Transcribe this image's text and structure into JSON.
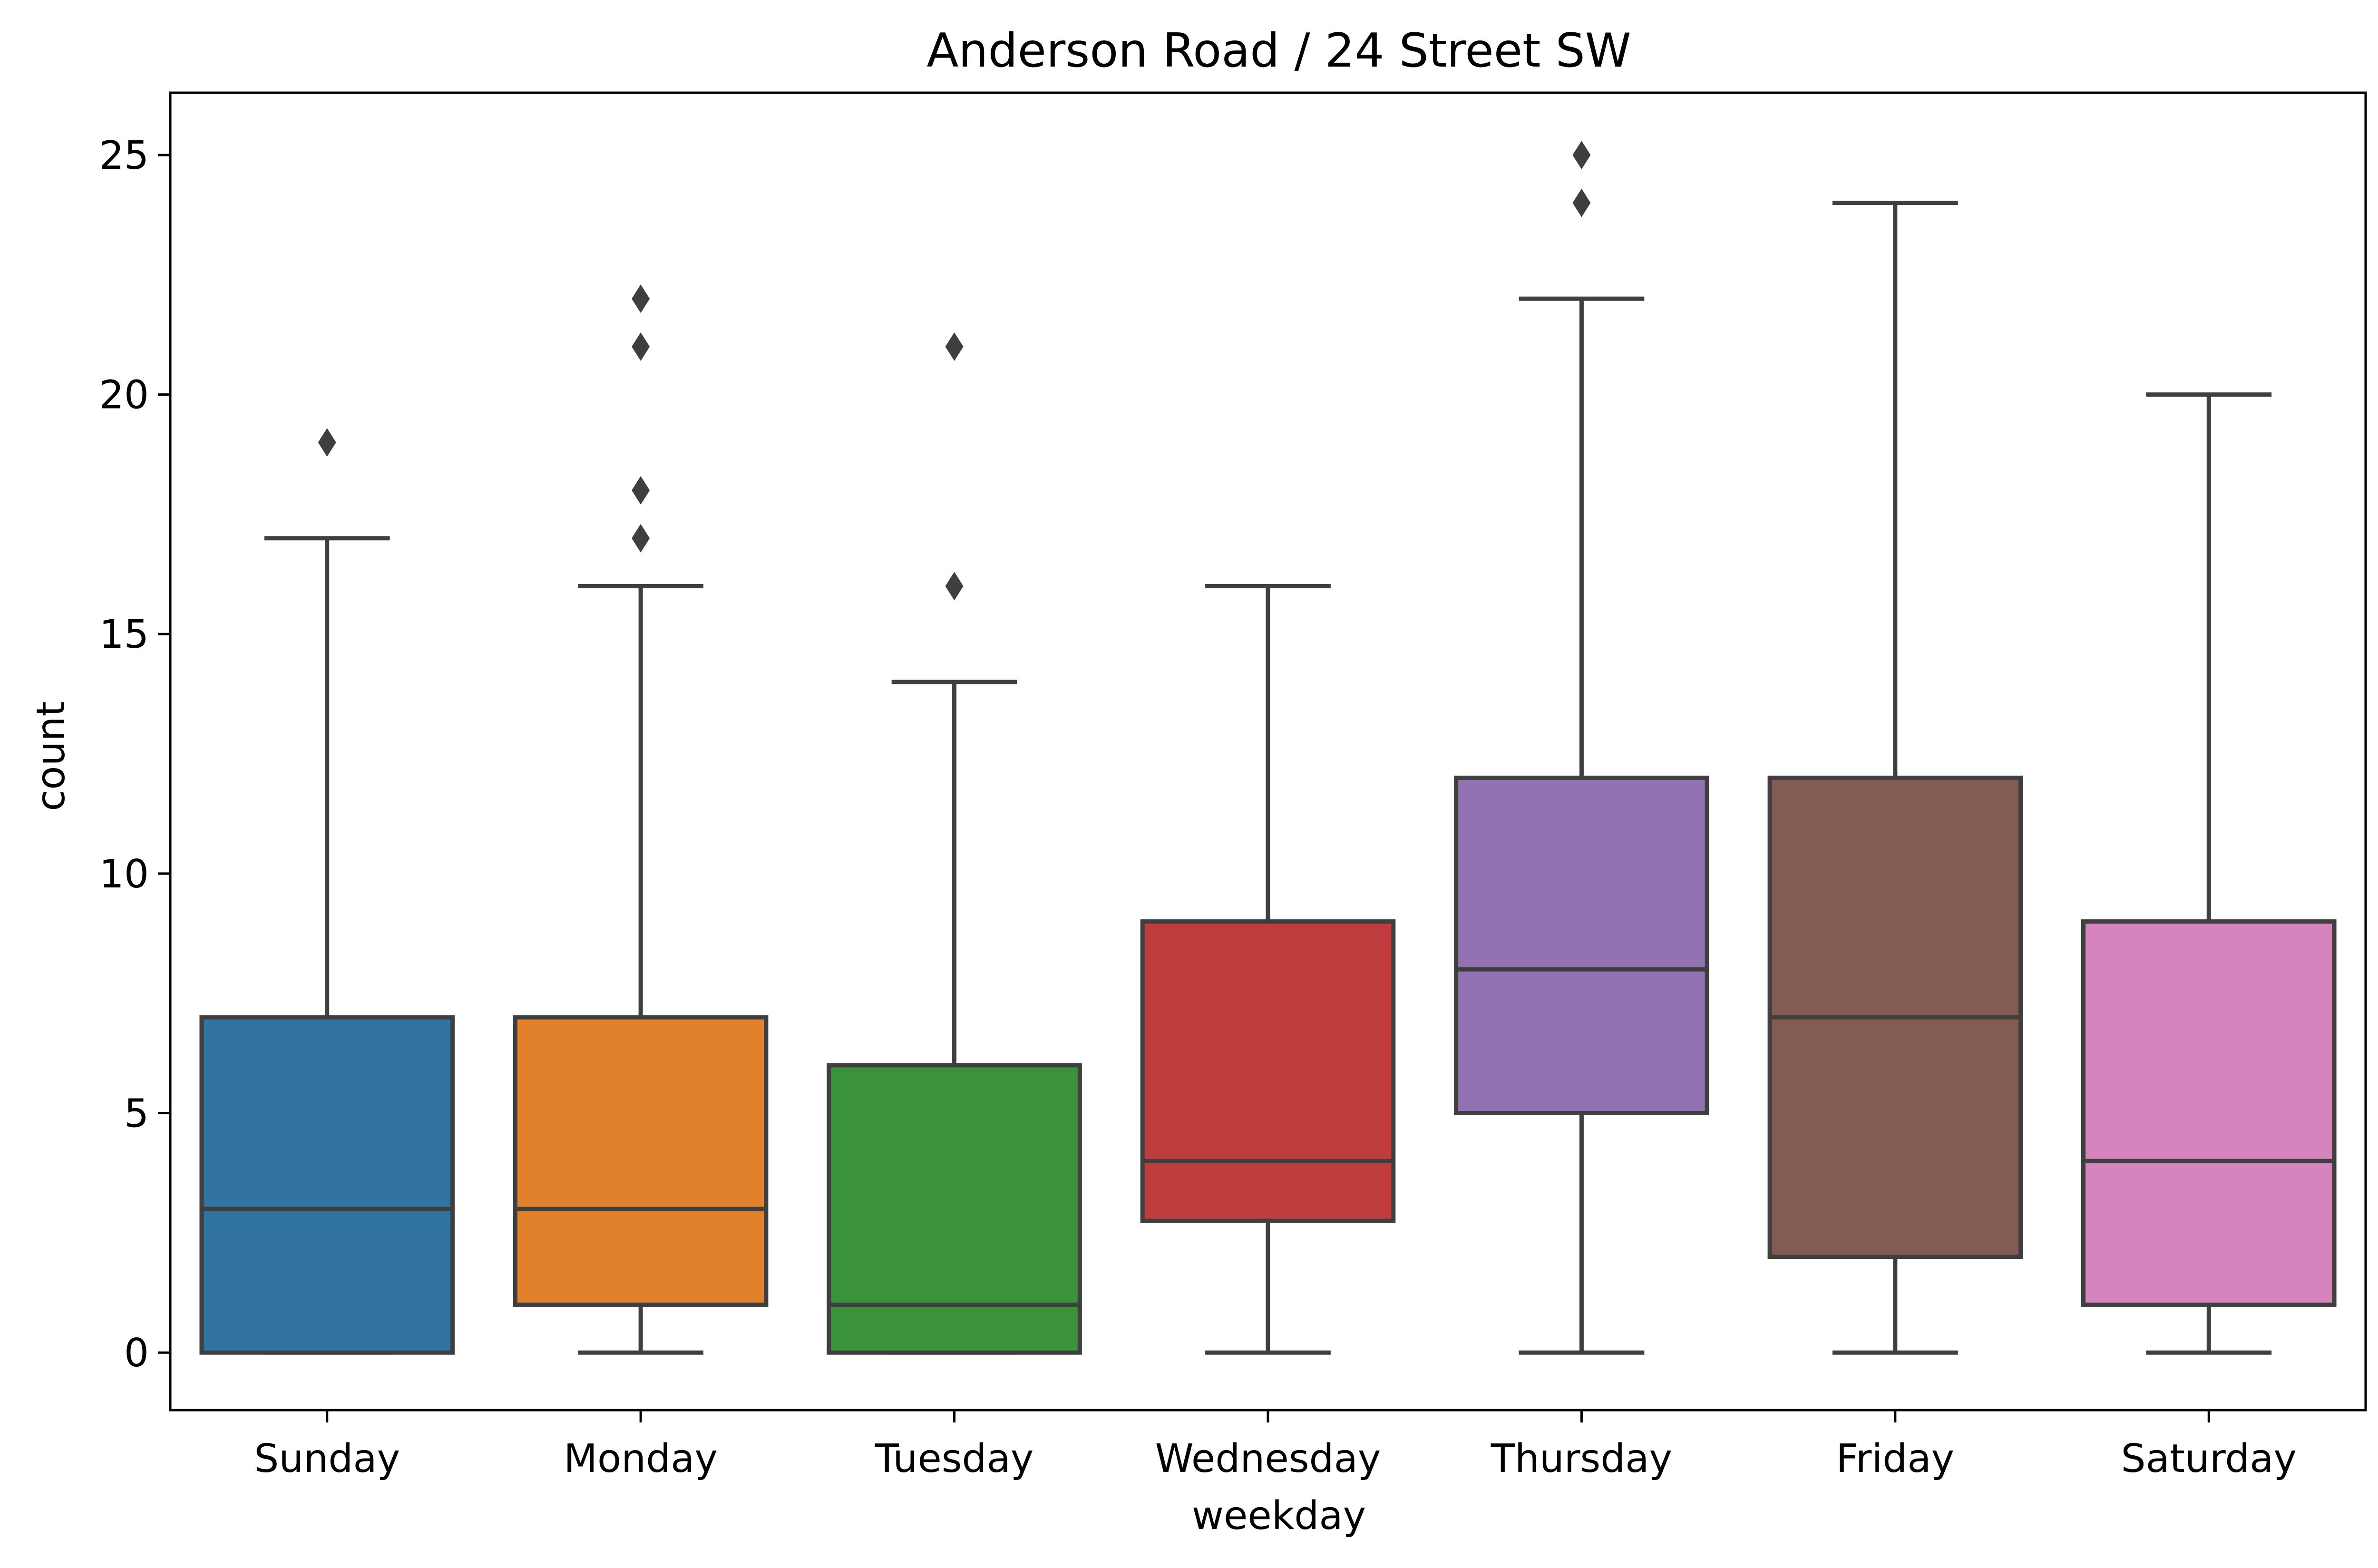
{
  "chart_data": {
    "type": "box",
    "title": "Anderson Road / 24 Street SW",
    "xlabel": "weekday",
    "ylabel": "count",
    "ylim": [
      -1.2,
      26.3
    ],
    "yticks": [
      0,
      5,
      10,
      15,
      20,
      25
    ],
    "grid": false,
    "categories": [
      "Sunday",
      "Monday",
      "Tuesday",
      "Wednesday",
      "Thursday",
      "Friday",
      "Saturday"
    ],
    "boxes": [
      {
        "category": "Sunday",
        "color": "#3274a1",
        "whisker_low": 0,
        "q1": 0,
        "median": 3,
        "q3": 7,
        "whisker_high": 17,
        "outliers": [
          19
        ]
      },
      {
        "category": "Monday",
        "color": "#e1812c",
        "whisker_low": 0,
        "q1": 1,
        "median": 3,
        "q3": 7,
        "whisker_high": 16,
        "outliers": [
          17,
          18,
          21,
          22
        ]
      },
      {
        "category": "Tuesday",
        "color": "#3a923a",
        "whisker_low": 0,
        "q1": 0,
        "median": 1,
        "q3": 6,
        "whisker_high": 14,
        "outliers": [
          16,
          21
        ]
      },
      {
        "category": "Wednesday",
        "color": "#c03d3e",
        "whisker_low": 0,
        "q1": 2.75,
        "median": 4,
        "q3": 9,
        "whisker_high": 16,
        "outliers": []
      },
      {
        "category": "Thursday",
        "color": "#9372b2",
        "whisker_low": 0,
        "q1": 5,
        "median": 8,
        "q3": 12,
        "whisker_high": 22,
        "outliers": [
          24,
          25
        ]
      },
      {
        "category": "Friday",
        "color": "#845b53",
        "whisker_low": 0,
        "q1": 2,
        "median": 7,
        "q3": 12,
        "whisker_high": 24,
        "outliers": []
      },
      {
        "category": "Saturday",
        "color": "#d684bd",
        "whisker_low": 0,
        "q1": 1,
        "median": 4,
        "q3": 9,
        "whisker_high": 20,
        "outliers": []
      }
    ]
  }
}
